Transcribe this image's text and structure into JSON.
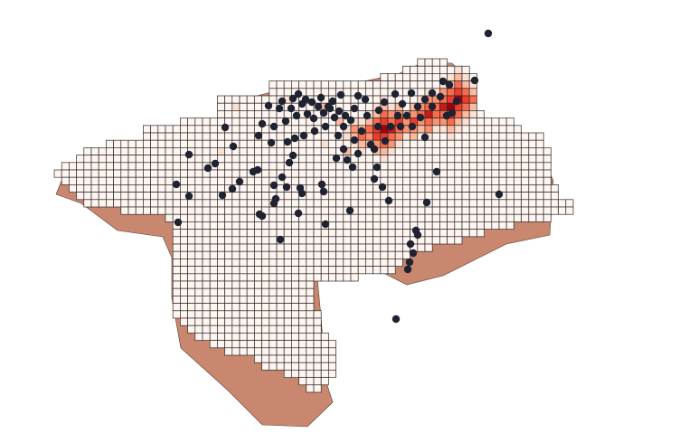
{
  "map": {
    "colors": {
      "background": "#ffffff",
      "grid_stroke": "#2b2b2b",
      "point_fill": "#1f2230",
      "boundary_fill": "#c9876f",
      "intensity_ramp": [
        "#fff5f0",
        "#fde0d2",
        "#fcbba1",
        "#fc9272",
        "#fb6a4a",
        "#ef3b2c",
        "#cb181d",
        "#99000d"
      ]
    },
    "layers": [
      "grid-cells",
      "region-boundary",
      "observation-points"
    ],
    "legend": null
  }
}
